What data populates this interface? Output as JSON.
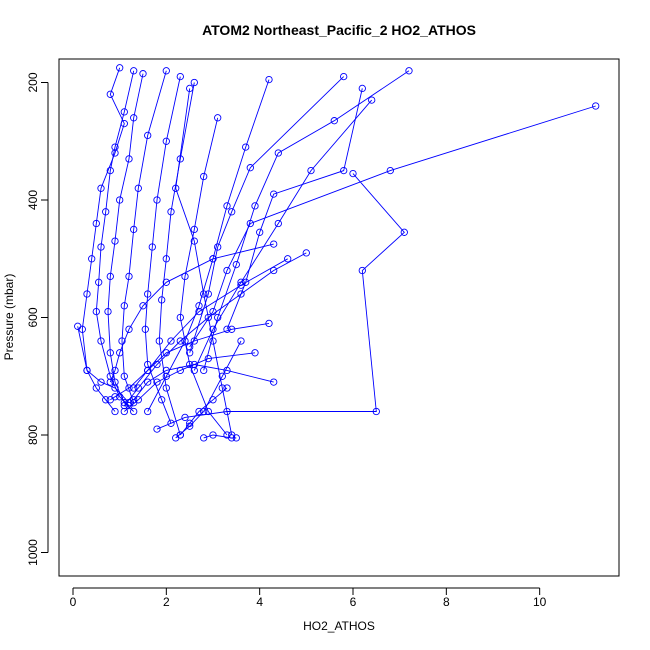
{
  "chart_data": {
    "type": "line",
    "title": "ATOM2 Northeast_Pacific_2 HO2_ATHOS",
    "xlabel": "HO2_ATHOS",
    "ylabel": "Pressure (mbar)",
    "xlim": [
      -0.3,
      11.7
    ],
    "ylim": [
      1040,
      160
    ],
    "y_reversed": true,
    "xticks": [
      0,
      2,
      4,
      6,
      8,
      10
    ],
    "yticks": [
      200,
      400,
      600,
      800,
      1000
    ],
    "color": "#0000ff",
    "marker": "open-circle",
    "series": [
      {
        "x": [
          1.0,
          0.8,
          1.1,
          0.9,
          0.6,
          0.5,
          0.4,
          0.3,
          0.2,
          0.3,
          0.5,
          0.7,
          0.9
        ],
        "y": [
          175,
          220,
          270,
          320,
          380,
          440,
          500,
          560,
          620,
          690,
          720,
          740,
          760
        ]
      },
      {
        "x": [
          1.3,
          1.1,
          0.9,
          0.8,
          0.7,
          0.6,
          0.55,
          0.5,
          0.6,
          0.8,
          1.0,
          1.2
        ],
        "y": [
          180,
          250,
          310,
          350,
          420,
          480,
          540,
          590,
          640,
          700,
          735,
          750
        ]
      },
      {
        "x": [
          1.5,
          1.3,
          1.2,
          1.0,
          0.9,
          0.8,
          0.75,
          0.8,
          0.9,
          1.1,
          1.3
        ],
        "y": [
          185,
          260,
          330,
          400,
          470,
          530,
          590,
          660,
          710,
          745,
          760
        ]
      },
      {
        "x": [
          2.0,
          1.6,
          1.4,
          1.3,
          1.2,
          1.1,
          1.05,
          1.1,
          1.3
        ],
        "y": [
          180,
          290,
          380,
          450,
          530,
          580,
          640,
          700,
          745
        ]
      },
      {
        "x": [
          2.3,
          2.0,
          1.8,
          1.7,
          1.6,
          1.55,
          1.6,
          1.9,
          2.1
        ],
        "y": [
          190,
          300,
          400,
          480,
          560,
          620,
          680,
          740,
          780
        ]
      },
      {
        "x": [
          2.6,
          2.3,
          2.1,
          2.0,
          1.9,
          1.85,
          2.0,
          2.3
        ],
        "y": [
          200,
          330,
          420,
          500,
          570,
          640,
          720,
          800
        ]
      },
      {
        "x": [
          2.5,
          2.2,
          2.6,
          2.8,
          3.0,
          3.2,
          3.4
        ],
        "y": [
          210,
          380,
          470,
          560,
          640,
          720,
          800
        ]
      },
      {
        "x": [
          3.1,
          2.8,
          2.6,
          2.4,
          2.3,
          2.5,
          2.9,
          3.3
        ],
        "y": [
          260,
          360,
          450,
          530,
          600,
          680,
          760,
          800
        ]
      },
      {
        "x": [
          4.2,
          3.7,
          3.3,
          3.0,
          2.7,
          2.4,
          2.0,
          1.6
        ],
        "y": [
          195,
          310,
          410,
          500,
          580,
          640,
          700,
          760
        ]
      },
      {
        "x": [
          11.2,
          6.8,
          3.8,
          3.3,
          3.0,
          2.5
        ],
        "y": [
          240,
          350,
          440,
          520,
          590,
          650
        ]
      },
      {
        "x": [
          7.2,
          5.6,
          4.4,
          3.9,
          3.5,
          3.1,
          2.8
        ],
        "y": [
          180,
          265,
          320,
          410,
          510,
          600,
          690
        ]
      },
      {
        "x": [
          6.2,
          5.8,
          4.3,
          4.0,
          3.7,
          3.3
        ],
        "y": [
          210,
          350,
          390,
          455,
          540,
          620
        ]
      },
      {
        "x": [
          6.4,
          5.1,
          4.4,
          3.6,
          3.0,
          2.6
        ],
        "y": [
          230,
          350,
          440,
          540,
          620,
          690
        ]
      },
      {
        "x": [
          5.8,
          3.8,
          3.4,
          3.1,
          2.9,
          2.5
        ],
        "y": [
          190,
          345,
          420,
          480,
          560,
          660
        ]
      },
      {
        "x": [
          6.0,
          7.1,
          6.2,
          6.5,
          3.3,
          2.4,
          1.8
        ],
        "y": [
          355,
          455,
          520,
          760,
          760,
          770,
          790
        ]
      },
      {
        "x": [
          4.3,
          3.0,
          2.0,
          1.5,
          1.2,
          1.0,
          0.9,
          0.8
        ],
        "y": [
          475,
          500,
          540,
          580,
          620,
          660,
          690,
          710
        ]
      },
      {
        "x": [
          4.6,
          3.6,
          2.7,
          2.1,
          1.6,
          1.2,
          0.9,
          0.8
        ],
        "y": [
          500,
          545,
          590,
          640,
          690,
          720,
          735,
          740
        ]
      },
      {
        "x": [
          5.0,
          4.3,
          3.6,
          2.9,
          2.3,
          1.8,
          1.4,
          1.1
        ],
        "y": [
          490,
          520,
          560,
          600,
          640,
          680,
          720,
          750
        ]
      },
      {
        "x": [
          4.2,
          3.4,
          2.6,
          2.0,
          1.6,
          1.3
        ],
        "y": [
          610,
          620,
          640,
          660,
          690,
          720
        ]
      },
      {
        "x": [
          4.3,
          3.3,
          2.6,
          2.0,
          1.6,
          1.3
        ],
        "y": [
          710,
          690,
          680,
          690,
          710,
          740
        ]
      },
      {
        "x": [
          3.9,
          2.9,
          2.3,
          1.8,
          1.4,
          1.1
        ],
        "y": [
          660,
          670,
          690,
          710,
          740,
          760
        ]
      },
      {
        "x": [
          0.1,
          0.3,
          0.6,
          0.9,
          1.2
        ],
        "y": [
          615,
          690,
          710,
          720,
          745
        ]
      },
      {
        "x": [
          3.6,
          3.2,
          2.8,
          2.5,
          2.2
        ],
        "y": [
          640,
          700,
          760,
          785,
          805
        ]
      },
      {
        "x": [
          3.3,
          3.0,
          2.7,
          2.5,
          2.3
        ],
        "y": [
          720,
          740,
          760,
          780,
          800
        ]
      },
      {
        "x": [
          3.5,
          3.4,
          3.0,
          2.8
        ],
        "y": [
          805,
          805,
          800,
          805
        ]
      }
    ]
  }
}
